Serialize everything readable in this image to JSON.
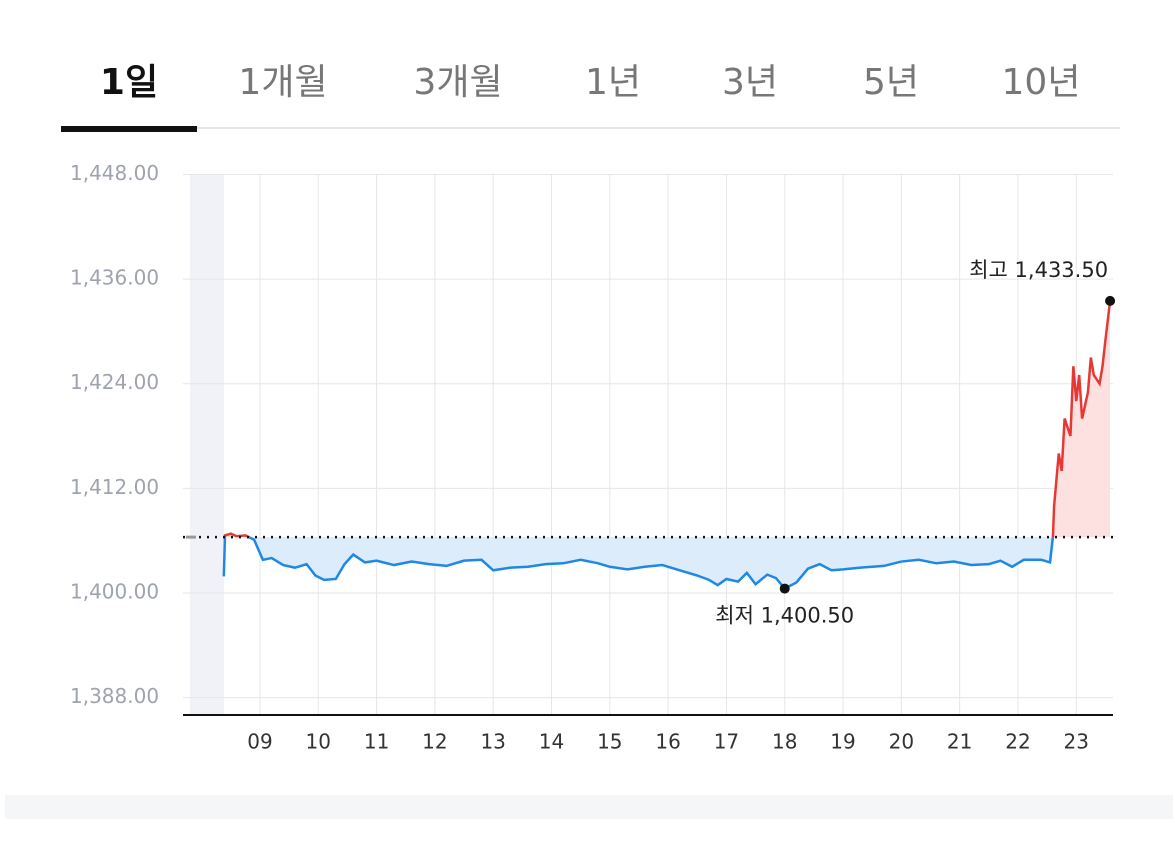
{
  "tabs": {
    "items": [
      "1일",
      "1개월",
      "3개월",
      "1년",
      "3년",
      "5년",
      "10년"
    ],
    "active": 0
  },
  "chart_data": {
    "type": "line",
    "x": [
      8.38,
      8.4,
      8.5,
      8.6,
      8.75,
      8.9,
      9.05,
      9.2,
      9.4,
      9.6,
      9.8,
      9.95,
      10.1,
      10.3,
      10.45,
      10.6,
      10.8,
      11.0,
      11.3,
      11.6,
      11.9,
      12.2,
      12.5,
      12.8,
      13.0,
      13.3,
      13.6,
      13.9,
      14.2,
      14.5,
      14.8,
      15.0,
      15.3,
      15.6,
      15.9,
      16.2,
      16.5,
      16.7,
      16.85,
      17.0,
      17.2,
      17.35,
      17.5,
      17.7,
      17.85,
      18.0,
      18.2,
      18.4,
      18.6,
      18.8,
      19.0,
      19.3,
      19.7,
      20.0,
      20.3,
      20.6,
      20.9,
      21.2,
      21.5,
      21.7,
      21.9,
      22.1,
      22.4,
      22.55,
      22.6,
      22.62,
      22.7,
      22.75,
      22.8,
      22.9,
      22.95,
      23.0,
      23.05,
      23.1,
      23.2,
      23.25,
      23.3,
      23.4,
      23.45,
      23.5,
      23.58
    ],
    "values": [
      1401.9,
      1406.6,
      1406.8,
      1406.5,
      1406.6,
      1406.1,
      1403.8,
      1404.0,
      1403.2,
      1402.9,
      1403.3,
      1402.0,
      1401.5,
      1401.6,
      1403.3,
      1404.4,
      1403.5,
      1403.7,
      1403.2,
      1403.6,
      1403.3,
      1403.1,
      1403.7,
      1403.8,
      1402.6,
      1402.9,
      1403.0,
      1403.3,
      1403.4,
      1403.8,
      1403.4,
      1403.0,
      1402.7,
      1403.0,
      1403.2,
      1402.6,
      1402.0,
      1401.5,
      1400.9,
      1401.6,
      1401.3,
      1402.3,
      1401.0,
      1402.1,
      1401.7,
      1400.5,
      1401.2,
      1402.8,
      1403.3,
      1402.6,
      1402.7,
      1402.9,
      1403.1,
      1403.6,
      1403.8,
      1403.4,
      1403.6,
      1403.2,
      1403.3,
      1403.7,
      1403.0,
      1403.8,
      1403.8,
      1403.5,
      1406.5,
      1410,
      1416,
      1414,
      1420,
      1418,
      1426,
      1422,
      1425,
      1420,
      1423,
      1427,
      1425,
      1424,
      1426,
      1429,
      1433.5
    ],
    "reference_line": 1406.4,
    "color_up": "#e53935",
    "color_down": "#1e88e5",
    "fill_up": "#fde0e0",
    "fill_down": "#dcecfb",
    "xlim": [
      7.68,
      23.63
    ],
    "ylim": [
      1386,
      1450
    ],
    "xticks": [
      {
        "value": 9,
        "label": "09"
      },
      10,
      11,
      12,
      13,
      14,
      15,
      16,
      17,
      18,
      19,
      20,
      21,
      22,
      23
    ],
    "yticks": [
      {
        "value": 1388,
        "label": "1,388.00"
      },
      {
        "value": 1400,
        "label": "1,400.00"
      },
      {
        "value": 1412,
        "label": "1,412.00"
      },
      {
        "value": 1424,
        "label": "1,424.00"
      },
      {
        "value": 1436,
        "label": "1,436.00"
      },
      {
        "value": 1448,
        "label": "1,448.00"
      }
    ],
    "grid": true,
    "annotations": [
      {
        "label": "최고 1,433.50",
        "x": 23.58,
        "y": 1433.5
      },
      {
        "label": "최저 1,400.50",
        "x": 18.0,
        "y": 1400.5
      }
    ]
  }
}
